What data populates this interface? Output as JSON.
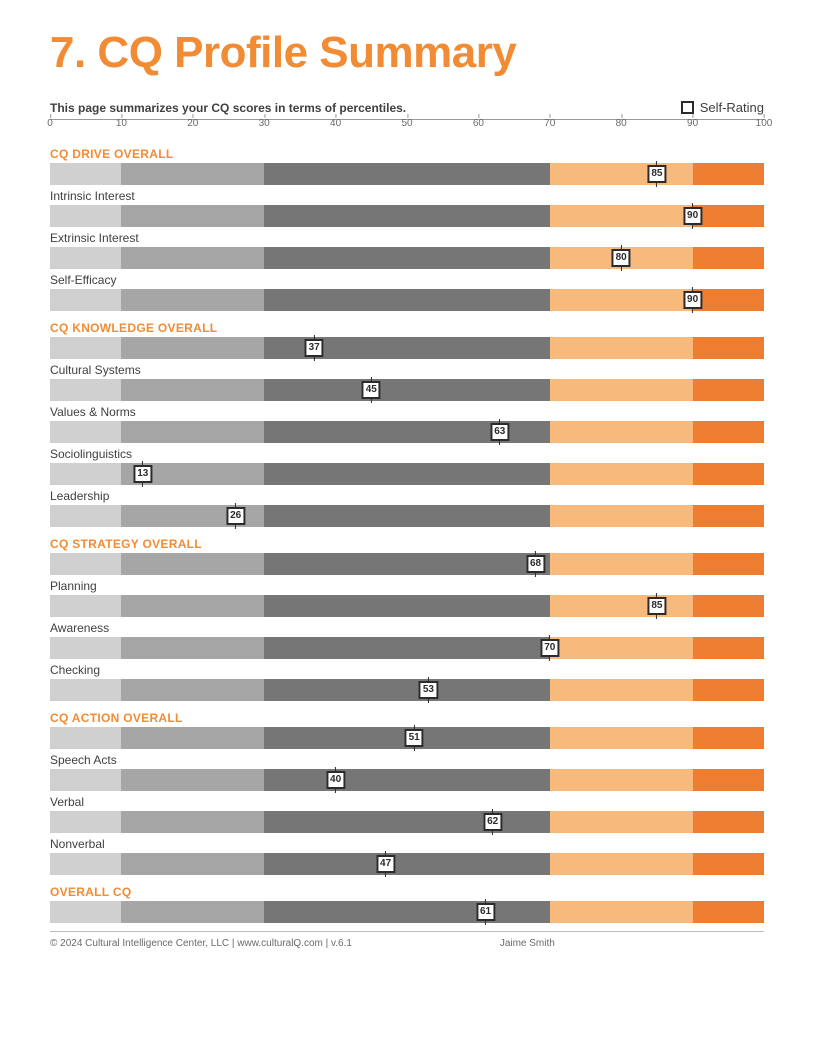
{
  "title": "7. CQ Profile Summary",
  "subhead": "This page summarizes your CQ scores in terms of percentiles.",
  "legend_label": "Self-Rating",
  "axis": {
    "min": 0,
    "max": 100,
    "ticks": [
      0,
      10,
      20,
      30,
      40,
      50,
      60,
      70,
      80,
      90,
      100
    ]
  },
  "bands": {
    "cuts": [
      0,
      10,
      30,
      70,
      90,
      100
    ],
    "colors": [
      "#d0d0d0",
      "#a6a6a6",
      "#767676",
      "#f8b97c",
      "#ed7d31"
    ]
  },
  "marker_style": {
    "border": "#2b2b2b",
    "bg": "#ffffff",
    "border_width": 2.5,
    "fontsize": 10
  },
  "rows": [
    {
      "label": "CQ DRIVE OVERALL",
      "header": true,
      "value": 85
    },
    {
      "label": "Intrinsic Interest",
      "header": false,
      "value": 90
    },
    {
      "label": "Extrinsic Interest",
      "header": false,
      "value": 80
    },
    {
      "label": "Self-Efficacy",
      "header": false,
      "value": 90
    },
    {
      "label": "CQ KNOWLEDGE OVERALL",
      "header": true,
      "value": 37
    },
    {
      "label": "Cultural Systems",
      "header": false,
      "value": 45
    },
    {
      "label": "Values & Norms",
      "header": false,
      "value": 63
    },
    {
      "label": "Sociolinguistics",
      "header": false,
      "value": 13
    },
    {
      "label": "Leadership",
      "header": false,
      "value": 26
    },
    {
      "label": "CQ STRATEGY OVERALL",
      "header": true,
      "value": 68
    },
    {
      "label": "Planning",
      "header": false,
      "value": 85
    },
    {
      "label": "Awareness",
      "header": false,
      "value": 70
    },
    {
      "label": "Checking",
      "header": false,
      "value": 53
    },
    {
      "label": "CQ ACTION OVERALL",
      "header": true,
      "value": 51
    },
    {
      "label": "Speech Acts",
      "header": false,
      "value": 40
    },
    {
      "label": "Verbal",
      "header": false,
      "value": 62
    },
    {
      "label": "Nonverbal",
      "header": false,
      "value": 47
    },
    {
      "label": "OVERALL CQ",
      "header": true,
      "value": 61
    }
  ],
  "footer": {
    "copyright": "© 2024 Cultural Intelligence Center, LLC | www.culturalQ.com | v.6.1",
    "name": "Jaime Smith"
  }
}
